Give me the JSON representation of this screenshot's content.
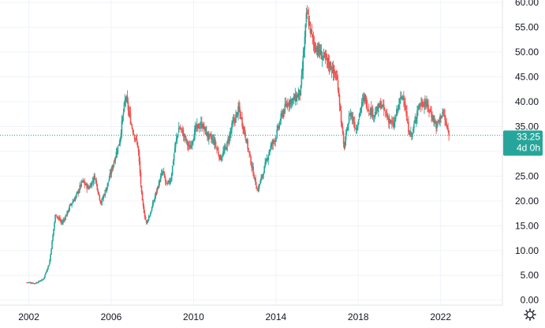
{
  "chart_data": {
    "type": "candlestick",
    "title": "",
    "xlabel": "",
    "ylabel": "",
    "ylim": [
      -1,
      60.5
    ],
    "xlim": [
      2000.6,
      2025.0
    ],
    "y_ticks": [
      "0.00",
      "5.00",
      "10.00",
      "15.00",
      "20.00",
      "25.00",
      "30.00",
      "35.00",
      "40.00",
      "45.00",
      "50.00",
      "55.00",
      "60.00"
    ],
    "x_ticks": [
      "2002",
      "2006",
      "2010",
      "2014",
      "2018",
      "2022"
    ],
    "grid": true,
    "up_color": "#26a69a",
    "down_color": "#ef5350",
    "last_price": {
      "value": "33.25",
      "countdown": "4d 0h",
      "color": "#26a69a"
    },
    "series": [
      {
        "x": [
          2001.9,
          2002.3,
          2002.7,
          2003.0,
          2003.3,
          2003.6,
          2003.8,
          2004.0,
          2004.3,
          2004.6,
          2004.9,
          2005.2,
          2005.5,
          2005.8,
          2006.1,
          2006.4,
          2006.7,
          2007.0,
          2007.3,
          2007.5,
          2007.7,
          2007.9,
          2008.2,
          2008.5,
          2008.7,
          2008.9,
          2009.1,
          2009.3,
          2009.5,
          2009.8,
          2010.1,
          2010.4,
          2010.7,
          2011.0,
          2011.3,
          2011.6,
          2011.9,
          2012.2,
          2012.5,
          2012.8,
          2013.1,
          2013.4,
          2013.7,
          2014.0,
          2014.3,
          2014.6,
          2014.9,
          2015.2,
          2015.5,
          2015.8,
          2016.1,
          2016.4,
          2016.7,
          2017.0,
          2017.3,
          2017.6,
          2017.9,
          2018.1,
          2018.3,
          2018.5,
          2018.8,
          2019.1,
          2019.4,
          2019.7,
          2020.0,
          2020.2,
          2020.4,
          2020.6,
          2020.9,
          2021.2,
          2021.5,
          2021.8,
          2022.1,
          2022.4
        ],
        "values": [
          3.6,
          3.4,
          4.2,
          7.5,
          17.5,
          15.5,
          17.0,
          19.0,
          21.0,
          24.0,
          22.5,
          25.0,
          19.5,
          23.0,
          27.5,
          32.0,
          41.0,
          35.0,
          31.0,
          20.0,
          15.5,
          17.5,
          22.0,
          26.0,
          23.0,
          24.5,
          31.0,
          35.0,
          33.5,
          30.5,
          34.5,
          35.5,
          33.0,
          32.0,
          28.5,
          31.0,
          35.5,
          38.5,
          33.5,
          27.5,
          22.0,
          26.0,
          30.5,
          33.0,
          37.5,
          40.0,
          40.5,
          42.0,
          58.0,
          52.0,
          50.0,
          48.5,
          47.0,
          44.0,
          30.5,
          38.0,
          34.5,
          38.5,
          41.0,
          38.5,
          37.5,
          39.5,
          37.0,
          35.0,
          40.0,
          41.5,
          35.0,
          33.0,
          39.0,
          40.0,
          38.0,
          35.0,
          38.0,
          33.25
        ]
      }
    ]
  }
}
